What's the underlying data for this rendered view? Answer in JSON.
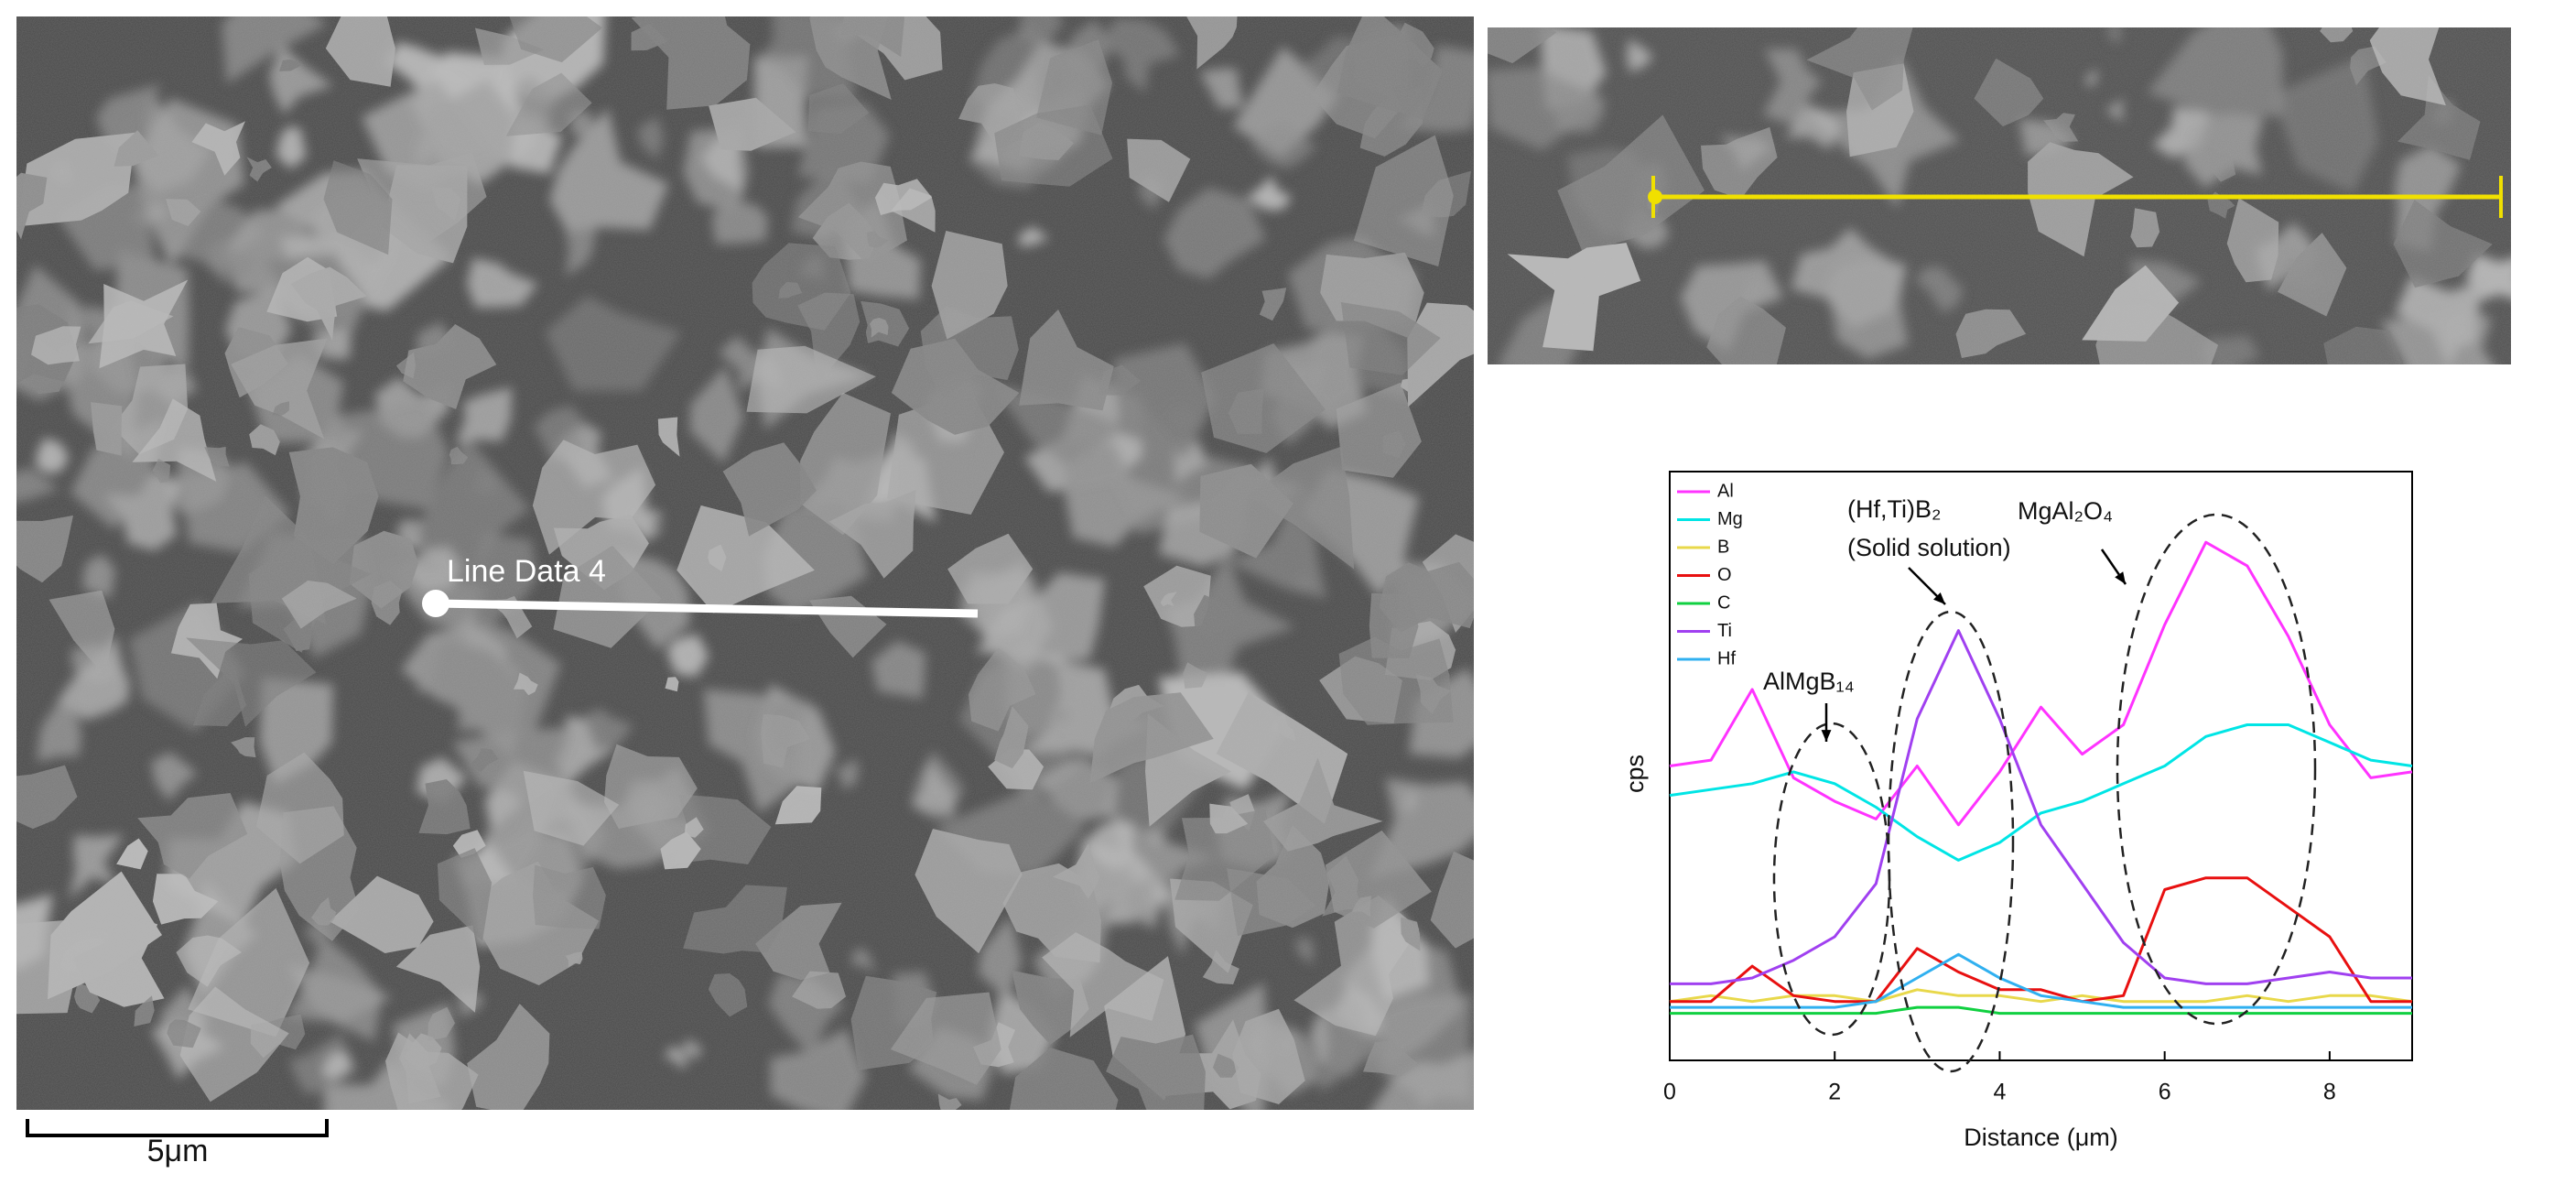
{
  "sem_image": {
    "line_label": "Line Data 4",
    "scale_bar": "5μm"
  },
  "chart_data": {
    "type": "line",
    "xlabel": "Distance (μm)",
    "ylabel": "cps",
    "annotations": [
      "AlMgB₁₄",
      "(Hf,Ti)B₂",
      "(Solid solution)",
      "MgAl₂O₄"
    ],
    "x": [
      0,
      0.5,
      1,
      1.5,
      2,
      2.5,
      3,
      3.5,
      4,
      4.5,
      5,
      5.5,
      6,
      6.5,
      7,
      7.5,
      8,
      8.5,
      9
    ],
    "xlim": [
      0,
      9
    ],
    "xticks": [
      0,
      2,
      4,
      6,
      8
    ],
    "ylim": [
      0,
      100
    ],
    "legend": "upper left",
    "series": [
      {
        "name": "Al",
        "color": "#ff33ff",
        "values": [
          50,
          51,
          63,
          48,
          44,
          41,
          50,
          40,
          49,
          60,
          52,
          57,
          74,
          88,
          84,
          72,
          57,
          48,
          49
        ]
      },
      {
        "name": "Mg",
        "color": "#00e5e5",
        "values": [
          45,
          46,
          47,
          49,
          47,
          43,
          38,
          34,
          37,
          42,
          44,
          47,
          50,
          55,
          57,
          57,
          54,
          51,
          50
        ]
      },
      {
        "name": "B",
        "color": "#e8d84a",
        "values": [
          10,
          11,
          10,
          11,
          11,
          10,
          12,
          11,
          11,
          10,
          11,
          10,
          10,
          10,
          11,
          10,
          11,
          11,
          10
        ]
      },
      {
        "name": "O",
        "color": "#e81010",
        "values": [
          10,
          10,
          16,
          11,
          10,
          10,
          19,
          15,
          12,
          12,
          10,
          11,
          29,
          31,
          31,
          26,
          21,
          10,
          10
        ]
      },
      {
        "name": "C",
        "color": "#10d040",
        "values": [
          8,
          8,
          8,
          8,
          8,
          8,
          9,
          9,
          8,
          8,
          8,
          8,
          8,
          8,
          8,
          8,
          8,
          8,
          8
        ]
      },
      {
        "name": "Ti",
        "color": "#a040f0",
        "values": [
          13,
          13,
          14,
          17,
          21,
          30,
          58,
          73,
          58,
          40,
          30,
          20,
          14,
          13,
          13,
          14,
          15,
          14,
          14
        ]
      },
      {
        "name": "Hf",
        "color": "#30b0f0",
        "values": [
          9,
          9,
          9,
          9,
          9,
          10,
          14,
          18,
          14,
          11,
          10,
          9,
          9,
          9,
          9,
          9,
          9,
          9,
          9
        ]
      }
    ]
  }
}
